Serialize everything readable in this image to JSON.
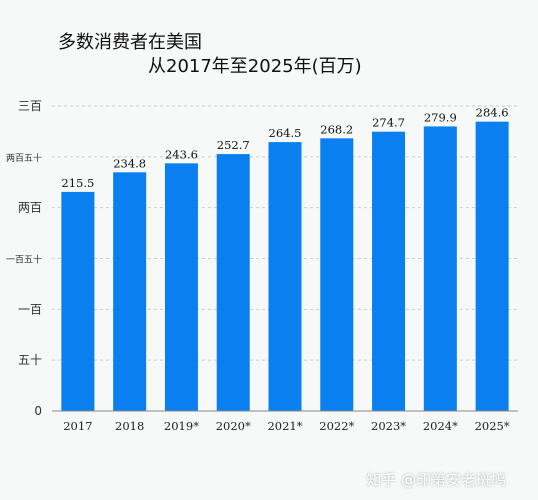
{
  "colors": {
    "bar": "#0a7ff0",
    "grid": "#c9cfd6",
    "axis": "#888888"
  },
  "watermark": "知乎 @印第安老斑鸠",
  "chart_data": {
    "type": "bar",
    "title": "多数消费者在美国",
    "subtitle": "从2017年至2025年(百万)",
    "categories": [
      "2017",
      "2018",
      "2019*",
      "2020*",
      "2021*",
      "2022*",
      "2023*",
      "2024*",
      "2025*"
    ],
    "values": [
      215.5,
      234.8,
      243.6,
      252.7,
      264.5,
      268.2,
      274.7,
      279.9,
      284.6
    ],
    "data_labels": [
      "215.5",
      "234.8",
      "243.6",
      "252.7",
      "264.5",
      "268.2",
      "274.7",
      "279.9",
      "284.6"
    ],
    "yticks": [
      {
        "value": 0,
        "label": "0",
        "size": "normal"
      },
      {
        "value": 50,
        "label": "五十",
        "size": "normal"
      },
      {
        "value": 100,
        "label": "一百",
        "size": "normal"
      },
      {
        "value": 150,
        "label": "一百五十",
        "size": "small"
      },
      {
        "value": 200,
        "label": "两百",
        "size": "normal"
      },
      {
        "value": 250,
        "label": "两百五十",
        "size": "small"
      },
      {
        "value": 300,
        "label": "三百",
        "size": "normal"
      }
    ],
    "ylim": [
      0,
      300
    ],
    "grid": true,
    "legend": "none"
  }
}
